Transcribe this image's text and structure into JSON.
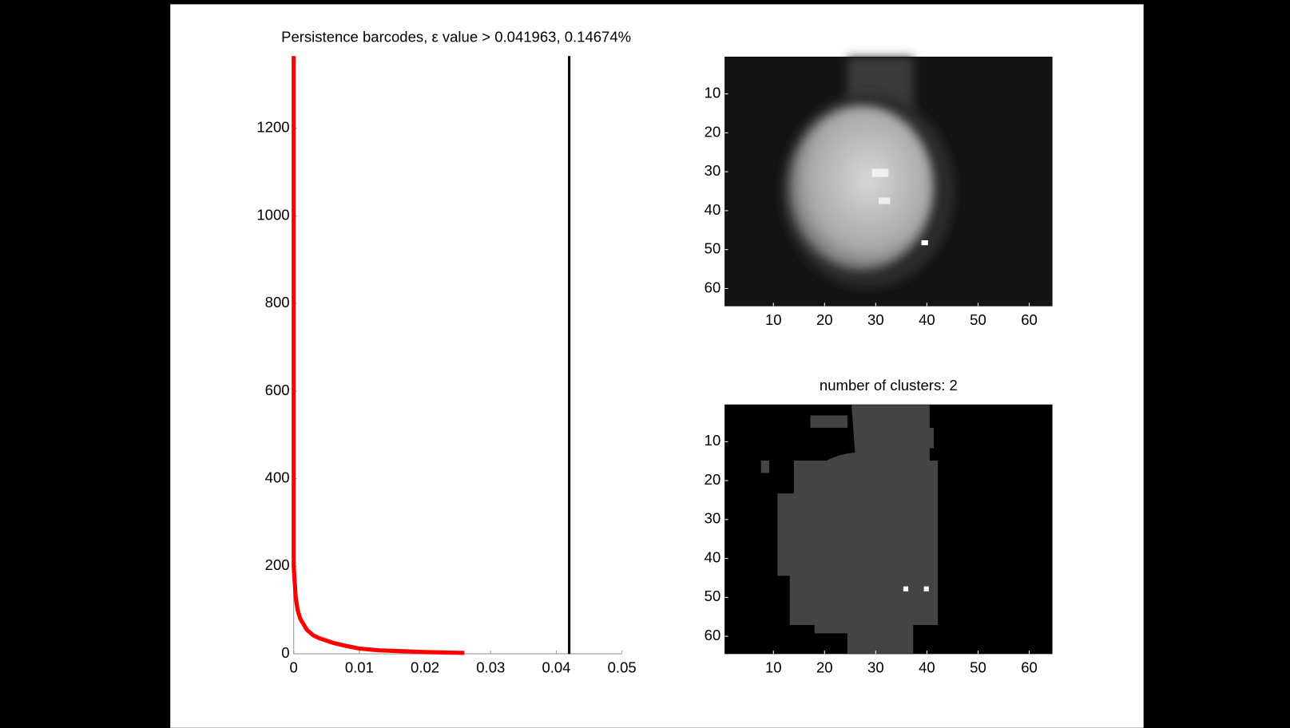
{
  "chart_data": [
    {
      "type": "line",
      "title": "Persistence barcodes, ε value > 0.041963, 0.14674%",
      "xlim": [
        0,
        0.05
      ],
      "xticks": [
        0,
        0.01,
        0.02,
        0.03,
        0.04,
        0.05
      ],
      "ylim": [
        0,
        1365
      ],
      "yticks": [
        0,
        200,
        400,
        600,
        800,
        1000,
        1200
      ],
      "series": [
        {
          "color": "#ff0000",
          "x": [
            0,
            0,
            0.0003,
            0.0006,
            0.001,
            0.002,
            0.003,
            0.004,
            0.006,
            0.008,
            0.01,
            0.013,
            0.02,
            0.026
          ],
          "values": [
            1365,
            200,
            130,
            100,
            80,
            55,
            42,
            35,
            25,
            18,
            12,
            8,
            4,
            2
          ]
        }
      ],
      "vline": {
        "x": 0.041963,
        "color": "#000000"
      }
    },
    {
      "type": "image",
      "colormap": "gray",
      "xlim": [
        0.5,
        64.5
      ],
      "xticks": [
        10,
        20,
        30,
        40,
        50,
        60
      ],
      "ylim": [
        0.5,
        64.5
      ],
      "yticks": [
        10,
        20,
        30,
        40,
        50,
        60
      ],
      "y_reversed": true
    },
    {
      "type": "image",
      "colormap": "gray",
      "title": "number of clusters: 2",
      "xlim": [
        0.5,
        64.5
      ],
      "xticks": [
        10,
        20,
        30,
        40,
        50,
        60
      ],
      "ylim": [
        0.5,
        64.5
      ],
      "yticks": [
        10,
        20,
        30,
        40,
        50,
        60
      ],
      "y_reversed": true
    }
  ]
}
